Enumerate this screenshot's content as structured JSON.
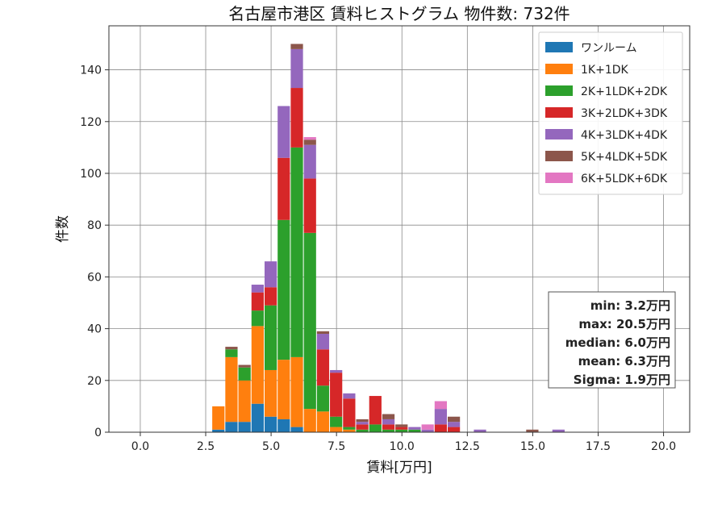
{
  "chart_data": {
    "type": "bar",
    "title": "名古屋市港区 賃料ヒストグラム 物件数: 732件",
    "xlabel": "賃料[万円]",
    "ylabel": "件数",
    "xlim": [
      -1.2,
      21.0
    ],
    "ylim": [
      0,
      157
    ],
    "xticks": [
      0.0,
      2.5,
      5.0,
      7.5,
      10.0,
      12.5,
      15.0,
      17.5,
      20.0
    ],
    "xtick_labels": [
      "0.0",
      "2.5",
      "5.0",
      "7.5",
      "10.0",
      "12.5",
      "15.0",
      "17.5",
      "20.0"
    ],
    "yticks": [
      0,
      20,
      40,
      60,
      80,
      100,
      120,
      140
    ],
    "ytick_labels": [
      "0",
      "20",
      "40",
      "60",
      "80",
      "100",
      "120",
      "140"
    ],
    "grid": true,
    "legend_position": "top-right",
    "stacked": true,
    "bin_width": 0.5,
    "bin_starts": [
      2.75,
      3.25,
      3.75,
      4.25,
      4.75,
      5.25,
      5.75,
      6.25,
      6.75,
      7.25,
      7.75,
      8.25,
      8.75,
      9.25,
      9.75,
      10.25,
      10.75,
      11.25,
      11.75,
      12.75,
      14.75,
      15.75
    ],
    "series": [
      {
        "name": "ワンルーム",
        "color": "#1f77b4",
        "values": [
          1,
          4,
          4,
          11,
          6,
          5,
          2,
          0,
          0,
          0,
          0,
          0,
          0,
          0,
          0,
          0,
          0,
          0,
          0,
          0,
          0,
          0
        ]
      },
      {
        "name": "1K+1DK",
        "color": "#ff7f0e",
        "values": [
          9,
          25,
          16,
          30,
          18,
          23,
          27,
          9,
          8,
          2,
          1,
          0,
          0,
          0,
          0,
          0,
          0,
          0,
          0,
          0,
          0,
          0
        ]
      },
      {
        "name": "2K+1LDK+2DK",
        "color": "#2ca02c",
        "values": [
          0,
          3,
          5,
          6,
          25,
          54,
          81,
          68,
          10,
          4,
          1,
          1,
          3,
          1,
          1,
          1,
          0,
          0,
          0,
          0,
          0,
          0
        ]
      },
      {
        "name": "3K+2LDK+3DK",
        "color": "#d62728",
        "values": [
          0,
          0,
          0,
          7,
          7,
          24,
          23,
          21,
          14,
          17,
          11,
          2,
          11,
          2,
          1,
          0,
          0,
          3,
          2,
          0,
          0,
          0
        ]
      },
      {
        "name": "4K+3LDK+4DK",
        "color": "#9467bd",
        "values": [
          0,
          0,
          0,
          3,
          10,
          20,
          15,
          13,
          6,
          1,
          2,
          1,
          0,
          2,
          0,
          1,
          1,
          6,
          2,
          1,
          0,
          1
        ]
      },
      {
        "name": "5K+4LDK+5DK",
        "color": "#8c564b",
        "values": [
          0,
          1,
          1,
          0,
          0,
          0,
          2,
          2,
          1,
          0,
          0,
          1,
          0,
          2,
          1,
          0,
          0,
          0,
          2,
          0,
          1,
          0
        ]
      },
      {
        "name": "6K+5LDK+6DK",
        "color": "#e377c2",
        "values": [
          0,
          0,
          0,
          0,
          0,
          0,
          0,
          1,
          0,
          0,
          0,
          0,
          0,
          0,
          0,
          0,
          2,
          3,
          0,
          0,
          0,
          0
        ]
      }
    ],
    "stats_box": [
      "min: 3.2万円",
      "max: 20.5万円",
      "median: 6.0万円",
      "mean: 6.3万円",
      "Sigma: 1.9万円"
    ]
  }
}
